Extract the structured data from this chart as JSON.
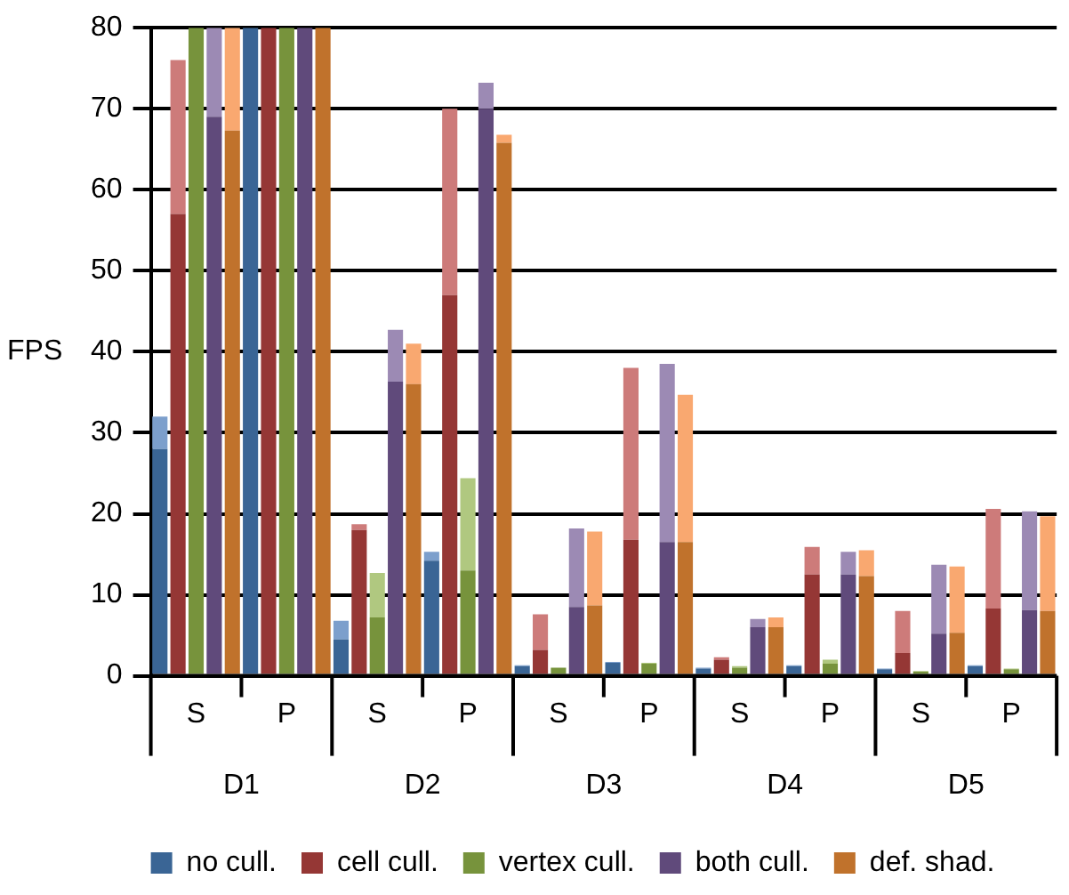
{
  "chart_data": {
    "type": "bar",
    "ylabel": "FPS",
    "stacked": true,
    "categories": [
      null,
      null,
      "S",
      null,
      null,
      null,
      null,
      "P",
      null,
      null,
      null,
      null,
      "S",
      null,
      null,
      null,
      null,
      "P",
      null,
      null,
      null,
      null,
      "S",
      null,
      null,
      null,
      null,
      "P",
      null,
      null,
      null,
      null,
      "S",
      null,
      null,
      null,
      null,
      "P",
      null,
      null,
      null,
      null,
      "S",
      null,
      null,
      null,
      null,
      "P",
      null,
      null
    ],
    "annotations": [
      "D1",
      "D2",
      "D3",
      "D4",
      "D5"
    ],
    "series": [
      {
        "name": "no cull.",
        "color": "#3a6595",
        "values": [
          28,
          null,
          null,
          null,
          null,
          80,
          null,
          null,
          null,
          null,
          4.5,
          null,
          null,
          null,
          null,
          14.2,
          null,
          null,
          null,
          null,
          1.2,
          null,
          null,
          null,
          null,
          1.6,
          null,
          null,
          null,
          null,
          0.9,
          null,
          null,
          null,
          null,
          1.2,
          null,
          null,
          null,
          null,
          0.8,
          null,
          null,
          null,
          null,
          1.2,
          null,
          null,
          null,
          null
        ]
      },
      {
        "color": "#7c9fcc",
        "values": [
          4,
          null,
          null,
          null,
          null,
          null,
          null,
          null,
          null,
          null,
          2.3,
          null,
          null,
          null,
          null,
          1.1,
          null,
          null,
          null,
          null,
          0.1,
          null,
          null,
          null,
          null,
          0.1,
          null,
          null,
          null,
          null,
          0.1,
          null,
          null,
          null,
          null,
          0.1,
          null,
          null,
          null,
          null,
          0.1,
          null,
          null,
          null,
          null,
          0.1,
          null,
          null,
          null,
          null
        ]
      },
      {
        "name": "cell cull.",
        "color": "#953735",
        "values": [
          null,
          57,
          null,
          null,
          null,
          null,
          80,
          null,
          null,
          null,
          null,
          18,
          null,
          null,
          null,
          null,
          47,
          null,
          null,
          null,
          null,
          3.2,
          null,
          null,
          null,
          null,
          16.8,
          null,
          null,
          null,
          null,
          2,
          null,
          null,
          null,
          null,
          12.5,
          null,
          null,
          null,
          null,
          2.8,
          null,
          null,
          null,
          null,
          8.3,
          null,
          null,
          null
        ]
      },
      {
        "color": "#cd7b7a",
        "values": [
          null,
          19,
          null,
          null,
          null,
          null,
          null,
          null,
          null,
          null,
          null,
          0.7,
          null,
          null,
          null,
          null,
          23,
          null,
          null,
          null,
          null,
          4.4,
          null,
          null,
          null,
          null,
          21.2,
          null,
          null,
          null,
          null,
          0.3,
          null,
          null,
          null,
          null,
          3.4,
          null,
          null,
          null,
          null,
          5.2,
          null,
          null,
          null,
          null,
          12.3,
          null,
          null,
          null
        ]
      },
      {
        "name": "vertex cull.",
        "color": "#77933c",
        "values": [
          null,
          null,
          80,
          null,
          null,
          null,
          null,
          80,
          null,
          null,
          null,
          null,
          7.2,
          null,
          null,
          null,
          null,
          13,
          null,
          null,
          null,
          null,
          1,
          null,
          null,
          null,
          null,
          1.5,
          null,
          null,
          null,
          null,
          1,
          null,
          null,
          null,
          null,
          1.5,
          null,
          null,
          null,
          null,
          0.5,
          null,
          null,
          null,
          null,
          0.8,
          null,
          null
        ]
      },
      {
        "color": "#b0c880",
        "values": [
          null,
          null,
          null,
          null,
          null,
          null,
          null,
          null,
          null,
          null,
          null,
          null,
          5.5,
          null,
          null,
          null,
          null,
          11.4,
          null,
          null,
          null,
          null,
          null,
          null,
          null,
          null,
          null,
          0.1,
          null,
          null,
          null,
          null,
          0.2,
          null,
          null,
          null,
          null,
          0.5,
          null,
          null,
          null,
          null,
          0.1,
          null,
          null,
          null,
          null,
          0.1,
          null,
          null
        ]
      },
      {
        "name": "both cull.",
        "color": "#604a7b",
        "values": [
          null,
          null,
          null,
          69,
          null,
          null,
          null,
          null,
          80,
          null,
          null,
          null,
          null,
          36.3,
          null,
          null,
          null,
          null,
          70,
          null,
          null,
          null,
          null,
          8.5,
          null,
          null,
          null,
          null,
          16.5,
          null,
          null,
          null,
          null,
          6,
          null,
          null,
          null,
          null,
          12.5,
          null,
          null,
          null,
          null,
          5.2,
          null,
          null,
          null,
          null,
          8.1,
          null
        ]
      },
      {
        "color": "#9c8ab4",
        "values": [
          null,
          null,
          null,
          11,
          null,
          null,
          null,
          null,
          null,
          null,
          null,
          null,
          null,
          6.4,
          null,
          null,
          null,
          null,
          3.2,
          null,
          null,
          null,
          null,
          9.7,
          null,
          null,
          null,
          null,
          22,
          null,
          null,
          null,
          null,
          1,
          null,
          null,
          null,
          null,
          2.8,
          null,
          null,
          null,
          null,
          8.5,
          null,
          null,
          null,
          null,
          12.2,
          null
        ]
      },
      {
        "name": "def. shad.",
        "color": "#c0722c",
        "values": [
          null,
          null,
          null,
          null,
          67.3,
          null,
          null,
          null,
          null,
          80,
          null,
          null,
          null,
          null,
          36,
          null,
          null,
          null,
          null,
          65.8,
          null,
          null,
          null,
          null,
          8.7,
          null,
          null,
          null,
          null,
          16.5,
          null,
          null,
          null,
          null,
          6,
          null,
          null,
          null,
          null,
          12.3,
          null,
          null,
          null,
          null,
          5.3,
          null,
          null,
          null,
          null,
          8
        ]
      },
      {
        "color": "#f9a870",
        "values": [
          null,
          null,
          null,
          null,
          12.7,
          null,
          null,
          null,
          null,
          null,
          null,
          null,
          null,
          null,
          5,
          null,
          null,
          null,
          null,
          1,
          null,
          null,
          null,
          null,
          9.1,
          null,
          null,
          null,
          null,
          18.2,
          null,
          null,
          null,
          null,
          1.2,
          null,
          null,
          null,
          null,
          3.2,
          null,
          null,
          null,
          null,
          8.2,
          null,
          null,
          null,
          null,
          11.7
        ]
      }
    ],
    "ylim": [
      0,
      80
    ],
    "yticks": [
      0,
      10,
      20,
      30,
      40,
      50,
      60,
      70,
      80
    ],
    "grid": "y",
    "legend": "bottom"
  }
}
